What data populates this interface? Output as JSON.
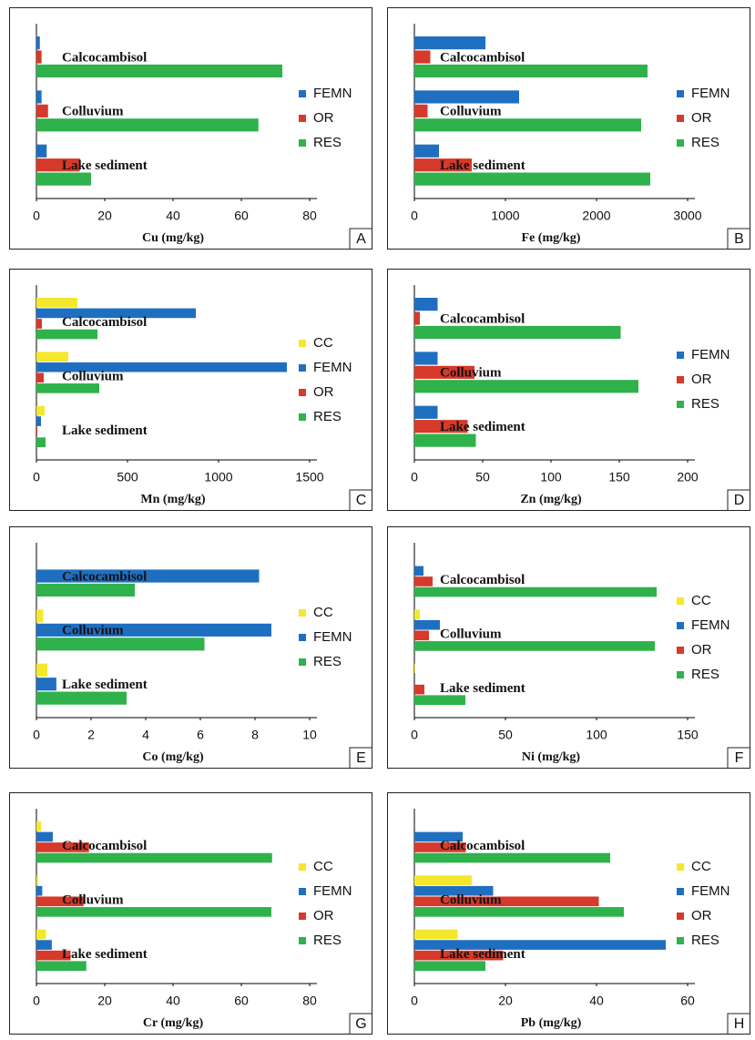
{
  "chart_data": [
    {
      "type": "bar",
      "orientation": "horizontal",
      "label": "A",
      "xlabel": "Cu (mg/kg)",
      "legend": "right",
      "categories": [
        "Calcocambisol",
        "Colluvium",
        "Lake sediment"
      ],
      "series": [
        {
          "name": "FEMN",
          "color": "#1f6fc1",
          "values": [
            1,
            1.5,
            3
          ]
        },
        {
          "name": "OR",
          "color": "#d7392a",
          "values": [
            1.5,
            3.4,
            12.7
          ]
        },
        {
          "name": "RES",
          "color": "#2fb24b",
          "values": [
            72,
            65,
            16
          ]
        }
      ],
      "xlim": [
        0,
        80
      ],
      "xticks": [
        0,
        20,
        40,
        60,
        80
      ]
    },
    {
      "type": "bar",
      "orientation": "horizontal",
      "label": "B",
      "xlabel": "Fe (mg/kg)",
      "legend": "right",
      "categories": [
        "Calcocambisol",
        "Colluvium",
        "Lake sediment"
      ],
      "series": [
        {
          "name": "FEMN",
          "color": "#1f6fc1",
          "values": [
            780,
            1150,
            270
          ]
        },
        {
          "name": "OR",
          "color": "#d7392a",
          "values": [
            175,
            145,
            630
          ]
        },
        {
          "name": "RES",
          "color": "#2fb24b",
          "values": [
            2560,
            2490,
            2590
          ]
        }
      ],
      "xlim": [
        0,
        3000
      ],
      "xticks": [
        0,
        1000,
        2000,
        3000
      ]
    },
    {
      "type": "bar",
      "orientation": "horizontal",
      "label": "C",
      "xlabel": "Mn (mg/kg)",
      "legend": "right",
      "categories": [
        "Calcocambisol",
        "Colluvium",
        "Lake sediment"
      ],
      "series": [
        {
          "name": "CC",
          "color": "#f4e82c",
          "values": [
            225,
            175,
            45
          ]
        },
        {
          "name": "FEMN",
          "color": "#1f6fc1",
          "values": [
            875,
            1375,
            25
          ]
        },
        {
          "name": "OR",
          "color": "#d7392a",
          "values": [
            30,
            40,
            5
          ]
        },
        {
          "name": "RES",
          "color": "#2fb24b",
          "values": [
            335,
            345,
            50
          ]
        }
      ],
      "xlim": [
        0,
        1500
      ],
      "xticks": [
        0,
        500,
        1000,
        1500
      ]
    },
    {
      "type": "bar",
      "orientation": "horizontal",
      "label": "D",
      "xlabel": "Zn (mg/kg)",
      "legend": "right",
      "categories": [
        "Calcocambisol",
        "Colluvium",
        "Lake sediment"
      ],
      "series": [
        {
          "name": "FEMN",
          "color": "#1f6fc1",
          "values": [
            17,
            17,
            17
          ]
        },
        {
          "name": "OR",
          "color": "#d7392a",
          "values": [
            4,
            44,
            39
          ]
        },
        {
          "name": "RES",
          "color": "#2fb24b",
          "values": [
            151,
            164,
            45
          ]
        }
      ],
      "xlim": [
        0,
        200
      ],
      "xticks": [
        0,
        50,
        100,
        150,
        200
      ]
    },
    {
      "type": "bar",
      "orientation": "horizontal",
      "label": "E",
      "xlabel": "Co (mg/kg)",
      "legend": "right",
      "categories": [
        "Calcocambisol",
        "Colluvium",
        "Lake sediment"
      ],
      "series": [
        {
          "name": "CC",
          "color": "#f4e82c",
          "values": [
            0,
            0.25,
            0.4
          ]
        },
        {
          "name": "FEMN",
          "color": "#1f6fc1",
          "values": [
            8.15,
            8.6,
            0.73
          ]
        },
        {
          "name": "RES",
          "color": "#2fb24b",
          "values": [
            3.6,
            6.15,
            3.3
          ]
        }
      ],
      "xlim": [
        0,
        10
      ],
      "xticks": [
        0,
        2,
        4,
        6,
        8,
        10
      ]
    },
    {
      "type": "bar",
      "orientation": "horizontal",
      "label": "F",
      "xlabel": "Ni (mg/kg)",
      "legend": "right",
      "categories": [
        "Calcocambisol",
        "Colluvium",
        "Lake sediment"
      ],
      "series": [
        {
          "name": "CC",
          "color": "#f4e82c",
          "values": [
            0,
            3,
            0.5
          ]
        },
        {
          "name": "FEMN",
          "color": "#1f6fc1",
          "values": [
            5,
            14,
            0
          ]
        },
        {
          "name": "OR",
          "color": "#d7392a",
          "values": [
            10,
            8,
            5.5
          ]
        },
        {
          "name": "RES",
          "color": "#2fb24b",
          "values": [
            133,
            132,
            28
          ]
        }
      ],
      "xlim": [
        0,
        150
      ],
      "xticks": [
        0,
        50,
        100,
        150
      ]
    },
    {
      "type": "bar",
      "orientation": "horizontal",
      "label": "G",
      "xlabel": "Cr (mg/kg)",
      "legend": "right",
      "categories": [
        "Calcocambisol",
        "Colluvium",
        "Lake sediment"
      ],
      "series": [
        {
          "name": "CC",
          "color": "#f4e82c",
          "values": [
            1.4,
            0.5,
            2.8
          ]
        },
        {
          "name": "FEMN",
          "color": "#1f6fc1",
          "values": [
            4.8,
            1.7,
            4.5
          ]
        },
        {
          "name": "OR",
          "color": "#d7392a",
          "values": [
            15.4,
            13.8,
            10
          ]
        },
        {
          "name": "RES",
          "color": "#2fb24b",
          "values": [
            69,
            68.8,
            14.6
          ]
        }
      ],
      "xlim": [
        0,
        80
      ],
      "xticks": [
        0,
        20,
        40,
        60,
        80
      ]
    },
    {
      "type": "bar",
      "orientation": "horizontal",
      "label": "H",
      "xlabel": "Pb (mg/kg)",
      "legend": "right",
      "categories": [
        "Calcocambisol",
        "Colluvium",
        "Lake sediment"
      ],
      "series": [
        {
          "name": "CC",
          "color": "#f4e82c",
          "values": [
            0,
            12.6,
            9.5
          ]
        },
        {
          "name": "FEMN",
          "color": "#1f6fc1",
          "values": [
            10.6,
            17.3,
            55.2
          ]
        },
        {
          "name": "OR",
          "color": "#d7392a",
          "values": [
            11.3,
            40.5,
            19.5
          ]
        },
        {
          "name": "RES",
          "color": "#2fb24b",
          "values": [
            43,
            46,
            15.6
          ]
        }
      ],
      "xlim": [
        0,
        60
      ],
      "xticks": [
        0,
        20,
        40,
        60
      ]
    }
  ]
}
